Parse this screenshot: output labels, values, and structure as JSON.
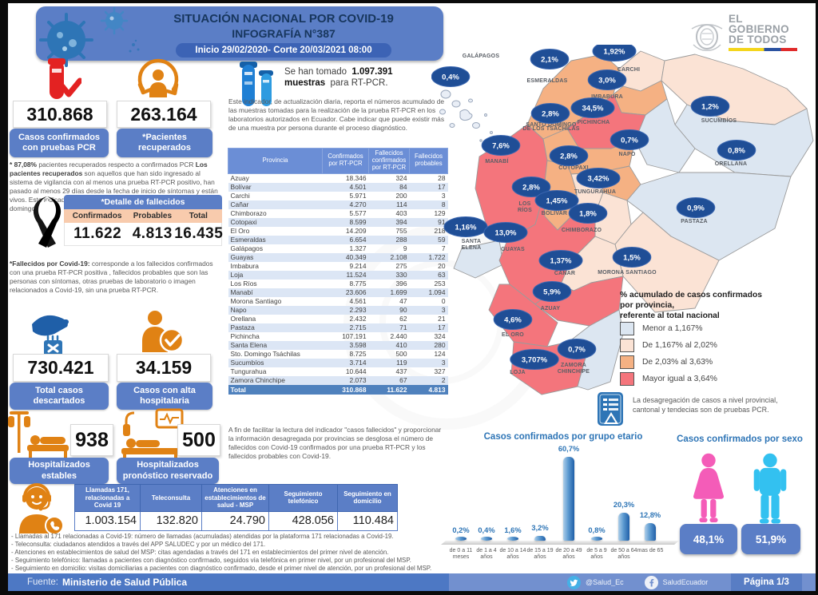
{
  "header": {
    "line1": "SITUACIÓN NACIONAL POR  COVID-19",
    "line2": "INFOGRAFÍA N°387",
    "line3": "Inicio 29/02/2020- Corte 20/03/2021 08:00"
  },
  "logo": {
    "l1": "EL",
    "l2": "GOBIERNO",
    "l3": "DE TODOS"
  },
  "stats": {
    "confirmed": {
      "value": "310.868",
      "label": "Casos confirmados con pruebas PCR"
    },
    "recovered": {
      "value": "263.164",
      "label": "*Pacientes recuperados"
    },
    "discarded": {
      "value": "730.421",
      "label": "Total casos descartados"
    },
    "discharged": {
      "value": "34.159",
      "label": "Casos con alta hospitalaria"
    },
    "stable": {
      "value": "938",
      "label": "Hospitalizados estables"
    },
    "reserved": {
      "value": "500",
      "label": "Hospitalizados pronóstico reservado"
    }
  },
  "recovered_note": {
    "b1": "* 87,08%",
    "t1": " pacientes recuperados respecto a confirmados PCR ",
    "b2": "Los pacientes recuperados",
    "t2": " son aquellos que han sido ingresado al sistema de vigilancia con al menos una prueba RT-PCR positivo, han pasado al menos 29 días desde la fecha de inicio de síntomas y están vivos. Este indicador se mostrará acumulado semanalmente cada domingo."
  },
  "deaths": {
    "title": "*Detalle de fallecidos",
    "headers": [
      "Confirmados",
      "Probables",
      "Total"
    ],
    "values": [
      "11.622",
      "4.813",
      "16.435"
    ],
    "note_b": "*Fallecidos por Covid-19:",
    "note_t": " corresponde a los fallecidos confirmados con una prueba RT-PCR positiva , fallecidos probables que son las personas con síntomas, otras pruebas de laboratorio o imagen relacionados a Covid-19, sin una prueba RT-PCR."
  },
  "samples": {
    "line1_a": "Se han tomado",
    "line1_b": "1.097.391",
    "line2_a": "muestras",
    "line2_b": "para RT-PCR.",
    "desc": "Este indicador, de actualización diaria, reporta el números acumulado de las muestras tomadas para la realización de la prueba RT-PCR en los laboratorios autorizados en Ecuador. Cabe indicar que puede existir más de una muestra por persona durante el proceso diagnóstico."
  },
  "province_table": {
    "headers": [
      "Provincia",
      "Confirmados por RT-PCR",
      "Fallecidos confirmados por RT-PCR",
      "Fallecidos probables"
    ],
    "rows": [
      [
        "Azuay",
        "18.346",
        "324",
        "28"
      ],
      [
        "Bolívar",
        "4.501",
        "84",
        "17"
      ],
      [
        "Carchi",
        "5.971",
        "200",
        "3"
      ],
      [
        "Cañar",
        "4.270",
        "114",
        "8"
      ],
      [
        "Chimborazo",
        "5.577",
        "403",
        "129"
      ],
      [
        "Cotopaxi",
        "8.599",
        "394",
        "91"
      ],
      [
        "El Oro",
        "14.209",
        "755",
        "218"
      ],
      [
        "Esmeraldas",
        "6.654",
        "288",
        "59"
      ],
      [
        "Galápagos",
        "1.327",
        "9",
        "7"
      ],
      [
        "Guayas",
        "40.349",
        "2.108",
        "1.722"
      ],
      [
        "Imbabura",
        "9.214",
        "275",
        "20"
      ],
      [
        "Loja",
        "11.524",
        "330",
        "63"
      ],
      [
        "Los Ríos",
        "8.775",
        "396",
        "253"
      ],
      [
        "Manabí",
        "23.606",
        "1.699",
        "1.094"
      ],
      [
        "Morona Santiago",
        "4.561",
        "47",
        "0"
      ],
      [
        "Napo",
        "2.293",
        "90",
        "3"
      ],
      [
        "Orellana",
        "2.432",
        "62",
        "21"
      ],
      [
        "Pastaza",
        "2.715",
        "71",
        "17"
      ],
      [
        "Pichincha",
        "107.191",
        "2.440",
        "324"
      ],
      [
        "Santa Elena",
        "3.598",
        "410",
        "280"
      ],
      [
        "Sto. Domingo Tsáchilas",
        "8.725",
        "500",
        "124"
      ],
      [
        "Sucumbíos",
        "3.714",
        "119",
        "3"
      ],
      [
        "Tungurahua",
        "10.644",
        "437",
        "327"
      ],
      [
        "Zamora Chinchipe",
        "2.073",
        "67",
        "2"
      ]
    ],
    "total": [
      "Total",
      "310.868",
      "11.622",
      "4.813"
    ]
  },
  "table_note": "A fin de facilitar la lectura del indicador \"casos fallecidos\" y proporcionar la información desagregada por provincias se desglosa el número de fallecidos con Covid-19 confirmados por una prueba RT-PCR y los fallecidos probables con Covid-19.",
  "map": {
    "legend_title": [
      "% acumulado de casos confirmados",
      "por provincia,",
      "referente al total nacional"
    ],
    "legend": [
      {
        "label": "Menor a 1,167%",
        "color": "#dce6f1"
      },
      {
        "label": "De 1,167% al 2,02%",
        "color": "#fbe3d5"
      },
      {
        "label": "De 2,03% al 3,63%",
        "color": "#f5b183"
      },
      {
        "label": "Mayor igual a 3,64%",
        "color": "#f4757c"
      }
    ],
    "note": "La desagregación de casos a nivel provincial, cantonal y tendecias son  de pruebas PCR.",
    "provinces": [
      {
        "key": "galapagos",
        "name": "GALÁPAGOS",
        "pct": "0,4%",
        "cat": 1
      },
      {
        "key": "esmeraldas",
        "name": "ESMERALDAS",
        "pct": "2,1%",
        "cat": 3
      },
      {
        "key": "carchi",
        "name": "CARCHI",
        "pct": "1,92%",
        "cat": 2
      },
      {
        "key": "imbabura",
        "name": "IMBABURA",
        "pct": "3,0%",
        "cat": 3
      },
      {
        "key": "sucumbios",
        "name": "SUCUMBÍOS",
        "pct": "1,2%",
        "cat": 2
      },
      {
        "key": "pichincha",
        "name": "PICHINCHA",
        "pct": "34,5%",
        "cat": 4
      },
      {
        "key": "sto_domingo",
        "name": "SANTO DOMINGO DE LOS TSÁCHILAS",
        "pct": "2,8%",
        "cat": 3
      },
      {
        "key": "napo",
        "name": "NAPO",
        "pct": "0,7%",
        "cat": 1
      },
      {
        "key": "orellana",
        "name": "ORELLANA",
        "pct": "0,8%",
        "cat": 1
      },
      {
        "key": "manabi",
        "name": "MANABÍ",
        "pct": "7,6%",
        "cat": 4
      },
      {
        "key": "cotopaxi",
        "name": "COTOPAXI",
        "pct": "2,8%",
        "cat": 3
      },
      {
        "key": "tungurahua",
        "name": "TUNGURAHUA",
        "pct": "3,42%",
        "cat": 3
      },
      {
        "key": "los_rios",
        "name": "LOS RÍOS",
        "pct": "2,8%",
        "cat": 3
      },
      {
        "key": "bolivar",
        "name": "BOLÍVAR",
        "pct": "1,45%",
        "cat": 2
      },
      {
        "key": "chimborazo",
        "name": "CHIMBORAZO",
        "pct": "1,8%",
        "cat": 2
      },
      {
        "key": "pastaza",
        "name": "PASTAZA",
        "pct": "0,9%",
        "cat": 1
      },
      {
        "key": "santa_elena",
        "name": "SANTA ELENA",
        "pct": "1,16%",
        "cat": 1
      },
      {
        "key": "guayas",
        "name": "GUAYAS",
        "pct": "13,0%",
        "cat": 4
      },
      {
        "key": "canar",
        "name": "CAÑAR",
        "pct": "1,37%",
        "cat": 2
      },
      {
        "key": "morona",
        "name": "MORONA SANTIAGO",
        "pct": "1,5%",
        "cat": 2
      },
      {
        "key": "azuay",
        "name": "AZUAY",
        "pct": "5,9%",
        "cat": 4
      },
      {
        "key": "el_oro",
        "name": "EL ORO",
        "pct": "4,6%",
        "cat": 4
      },
      {
        "key": "zamora",
        "name": "ZAMORA CHINCHIPE",
        "pct": "0,7%",
        "cat": 1
      },
      {
        "key": "loja",
        "name": "LOJA",
        "pct": "3,707%",
        "cat": 4
      }
    ]
  },
  "chart_data": [
    {
      "type": "bar",
      "title": "Casos confirmados por grupo etario",
      "categories": [
        "de 0 a 11 meses",
        "de 1 a 4 años",
        "de 10 a 14 años",
        "de 15 a 19 años",
        "de 20 a 49 años",
        "de 5 a 9 años",
        "de 50 a 64 años",
        "mas de 65"
      ],
      "values": [
        0.2,
        0.4,
        1.6,
        3.2,
        60.7,
        0.8,
        20.3,
        12.8
      ],
      "value_labels": [
        "0,2%",
        "0,4%",
        "1,6%",
        "3,2%",
        "60,7%",
        "0,8%",
        "20,3%",
        "12,8%"
      ],
      "xlabel": "",
      "ylabel": "",
      "unit": "%",
      "ylim": [
        0,
        65
      ],
      "grid": false
    },
    {
      "type": "bar",
      "title": "Casos confirmados por sexo",
      "categories": [
        "female",
        "male"
      ],
      "values": [
        48.1,
        51.9
      ],
      "value_labels": [
        "48,1%",
        "51,9%"
      ]
    }
  ],
  "calls": {
    "headers": [
      "Llamadas 171, relacionadas a Covid 19",
      "Teleconsulta",
      "Atenciones en establecimientos de salud - MSP",
      "Seguimiento telefónico",
      "Seguimiento en domicilio"
    ],
    "values": [
      "1.003.154",
      "132.820",
      "24.790",
      "428.056",
      "110.484"
    ]
  },
  "footnotes": [
    "- Llamadas al 171 relacionadas a  Covid-19: número de llamadas (acumuladas) atendidas por la plataforma 171 relacionadas a Covid-19.",
    "- Teleconsulta: ciudadanos atendidos a través del APP SALUDEC y por un médico del 171.",
    "- Atenciones en establecimientos de salud del MSP:  citas agendadas a través del 171 en establecimientos del primer nivel de atención.",
    "- Seguimiento telefónico: llamadas a pacientes con diagnóstico confirmado, seguidos vía telefónica en primer nivel, por un profesional del MSP.",
    "- Seguimiento en domicilio: visitas domiciliarias a pacientes con diagnóstico confirmado, desde el primer nivel de atención, por un profesional del MSP."
  ],
  "footer": {
    "fuente_label": "Fuente:",
    "fuente_value": "Ministerio de Salud Pública",
    "twitter": "@Salud_Ec",
    "facebook": "SaludEcuador",
    "page": "Página 1/3"
  }
}
